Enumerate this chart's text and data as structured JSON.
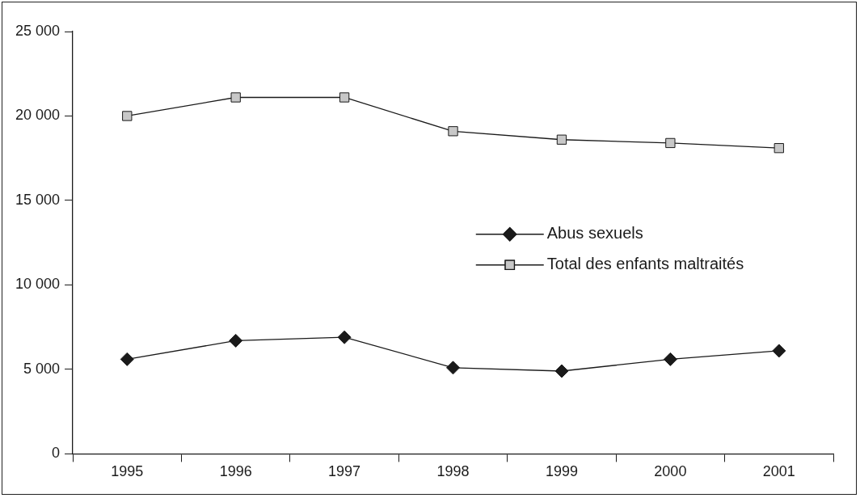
{
  "chart_data": {
    "type": "line",
    "categories": [
      "1995",
      "1996",
      "1997",
      "1998",
      "1999",
      "2000",
      "2001"
    ],
    "series": [
      {
        "name": "Abus sexuels",
        "color": "#1a1a1a",
        "marker": "diamond",
        "values": [
          5600,
          6700,
          6900,
          5100,
          4900,
          5600,
          6100
        ]
      },
      {
        "name": "Total des enfants maltraités",
        "color": "#c8c8c8",
        "marker": "square",
        "values": [
          20000,
          21100,
          21100,
          19100,
          18600,
          18400,
          18100
        ]
      }
    ],
    "ylim": [
      0,
      25000
    ],
    "yticks": [
      {
        "value": 0,
        "label": "0"
      },
      {
        "value": 5000,
        "label": "5 000"
      },
      {
        "value": 10000,
        "label": "10 000"
      },
      {
        "value": 15000,
        "label": "15 000"
      },
      {
        "value": 20000,
        "label": "20 000"
      },
      {
        "value": 25000,
        "label": "25 000"
      }
    ],
    "grid": false,
    "legend": "right",
    "line_style": "solid"
  }
}
